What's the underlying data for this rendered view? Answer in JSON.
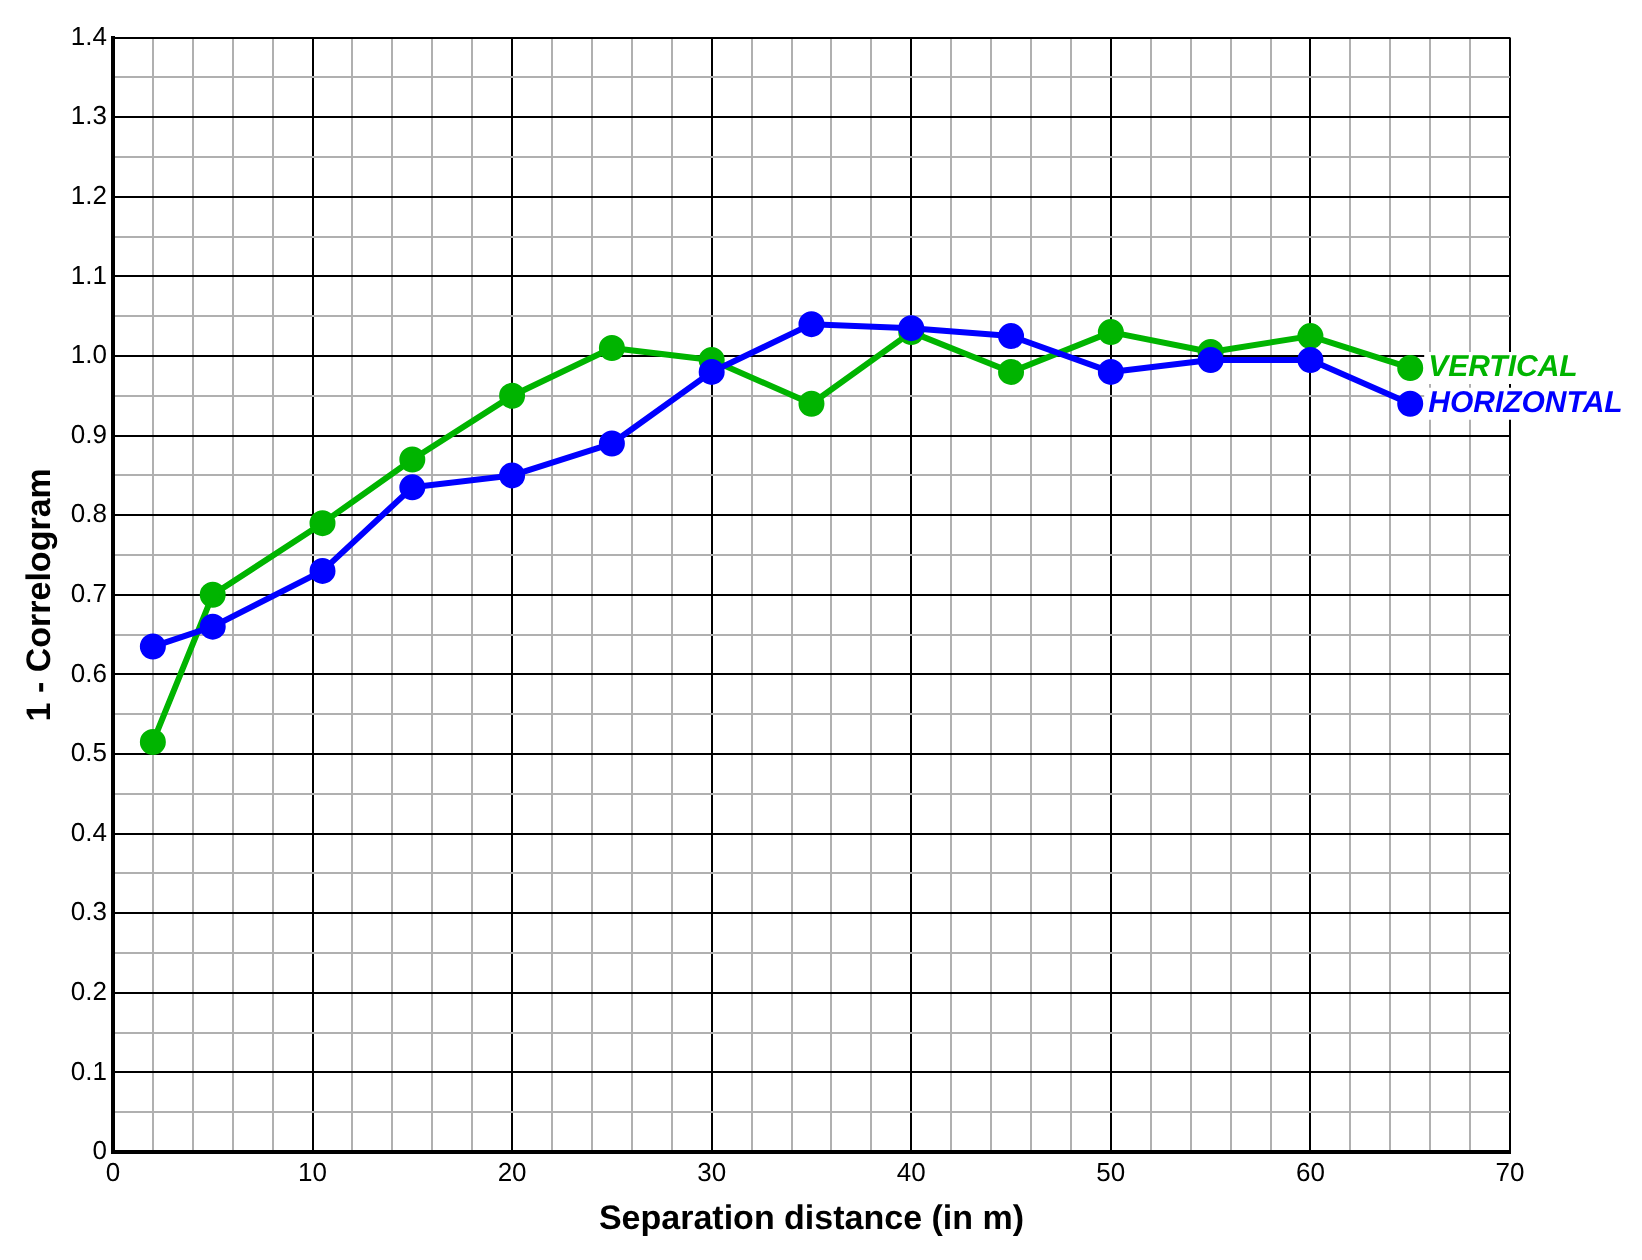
{
  "chart_data": {
    "type": "line",
    "xlabel": "Separation distance (in m)",
    "ylabel": "1 - Correlogram",
    "xlim": [
      0,
      70
    ],
    "ylim": [
      0,
      1.4
    ],
    "xticks": [
      0,
      {
        "value": 2,
        "label": null
      },
      {
        "value": 4,
        "label": null
      },
      {
        "value": 6,
        "label": null
      },
      {
        "value": 8,
        "label": null
      },
      10,
      {
        "value": 12,
        "label": null
      },
      {
        "value": 14,
        "label": null
      },
      {
        "value": 16,
        "label": null
      },
      {
        "value": 18,
        "label": null
      },
      20,
      {
        "value": 22,
        "label": null
      },
      {
        "value": 24,
        "label": null
      },
      {
        "value": 26,
        "label": null
      },
      {
        "value": 28,
        "label": null
      },
      30,
      {
        "value": 32,
        "label": null
      },
      {
        "value": 34,
        "label": null
      },
      {
        "value": 36,
        "label": null
      },
      {
        "value": 38,
        "label": null
      },
      40,
      {
        "value": 42,
        "label": null
      },
      {
        "value": 44,
        "label": null
      },
      {
        "value": 46,
        "label": null
      },
      {
        "value": 48,
        "label": null
      },
      50,
      {
        "value": 52,
        "label": null
      },
      {
        "value": 54,
        "label": null
      },
      {
        "value": 56,
        "label": null
      },
      {
        "value": 58,
        "label": null
      },
      60,
      {
        "value": 62,
        "label": null
      },
      {
        "value": 64,
        "label": null
      },
      {
        "value": 66,
        "label": null
      },
      {
        "value": 68,
        "label": null
      },
      70
    ],
    "yticks": [
      0.0,
      {
        "value": 0.05,
        "label": null
      },
      {
        "value": 0.1,
        "label": "0.1"
      },
      {
        "value": 0.15,
        "label": null
      },
      {
        "value": 0.2,
        "label": "0.2"
      },
      {
        "value": 0.25,
        "label": null
      },
      {
        "value": 0.3,
        "label": "0.3"
      },
      {
        "value": 0.35,
        "label": null
      },
      {
        "value": 0.4,
        "label": "0.4"
      },
      {
        "value": 0.45,
        "label": null
      },
      {
        "value": 0.5,
        "label": "0.5"
      },
      {
        "value": 0.55,
        "label": null
      },
      {
        "value": 0.6,
        "label": "0.6"
      },
      {
        "value": 0.65,
        "label": null
      },
      {
        "value": 0.7,
        "label": "0.7"
      },
      {
        "value": 0.75,
        "label": null
      },
      {
        "value": 0.8,
        "label": "0.8"
      },
      {
        "value": 0.85,
        "label": null
      },
      {
        "value": 0.9,
        "label": "0.9"
      },
      {
        "value": 0.95,
        "label": null
      },
      {
        "value": 1.0,
        "label": "1.0"
      },
      {
        "value": 1.05,
        "label": null
      },
      {
        "value": 1.1,
        "label": "1.1"
      },
      {
        "value": 1.15,
        "label": null
      },
      {
        "value": 1.2,
        "label": "1.2"
      },
      {
        "value": 1.25,
        "label": null
      },
      {
        "value": 1.3,
        "label": "1.3"
      },
      {
        "value": 1.35,
        "label": null
      },
      {
        "value": 1.4,
        "label": "1.4"
      }
    ],
    "grid": true,
    "legend": false,
    "marker": "circle",
    "line_style": "solid",
    "series": [
      {
        "name": "VERTICAL",
        "color": "#00b400",
        "x": [
          2,
          5,
          10.5,
          15,
          20,
          25,
          30,
          35,
          40,
          45,
          50,
          55,
          60,
          65
        ],
        "values": [
          0.515,
          0.7,
          0.79,
          0.87,
          0.95,
          1.01,
          0.995,
          0.94,
          1.03,
          0.98,
          1.03,
          1.005,
          1.025,
          0.985
        ]
      },
      {
        "name": "HORIZONTAL",
        "color": "#0000ff",
        "x": [
          2,
          5,
          10.5,
          15,
          20,
          25,
          30,
          35,
          40,
          45,
          50,
          55,
          60,
          65
        ],
        "values": [
          0.635,
          0.66,
          0.73,
          0.835,
          0.85,
          0.89,
          0.98,
          1.04,
          1.035,
          1.025,
          0.98,
          0.995,
          0.995,
          0.94
        ]
      }
    ]
  }
}
